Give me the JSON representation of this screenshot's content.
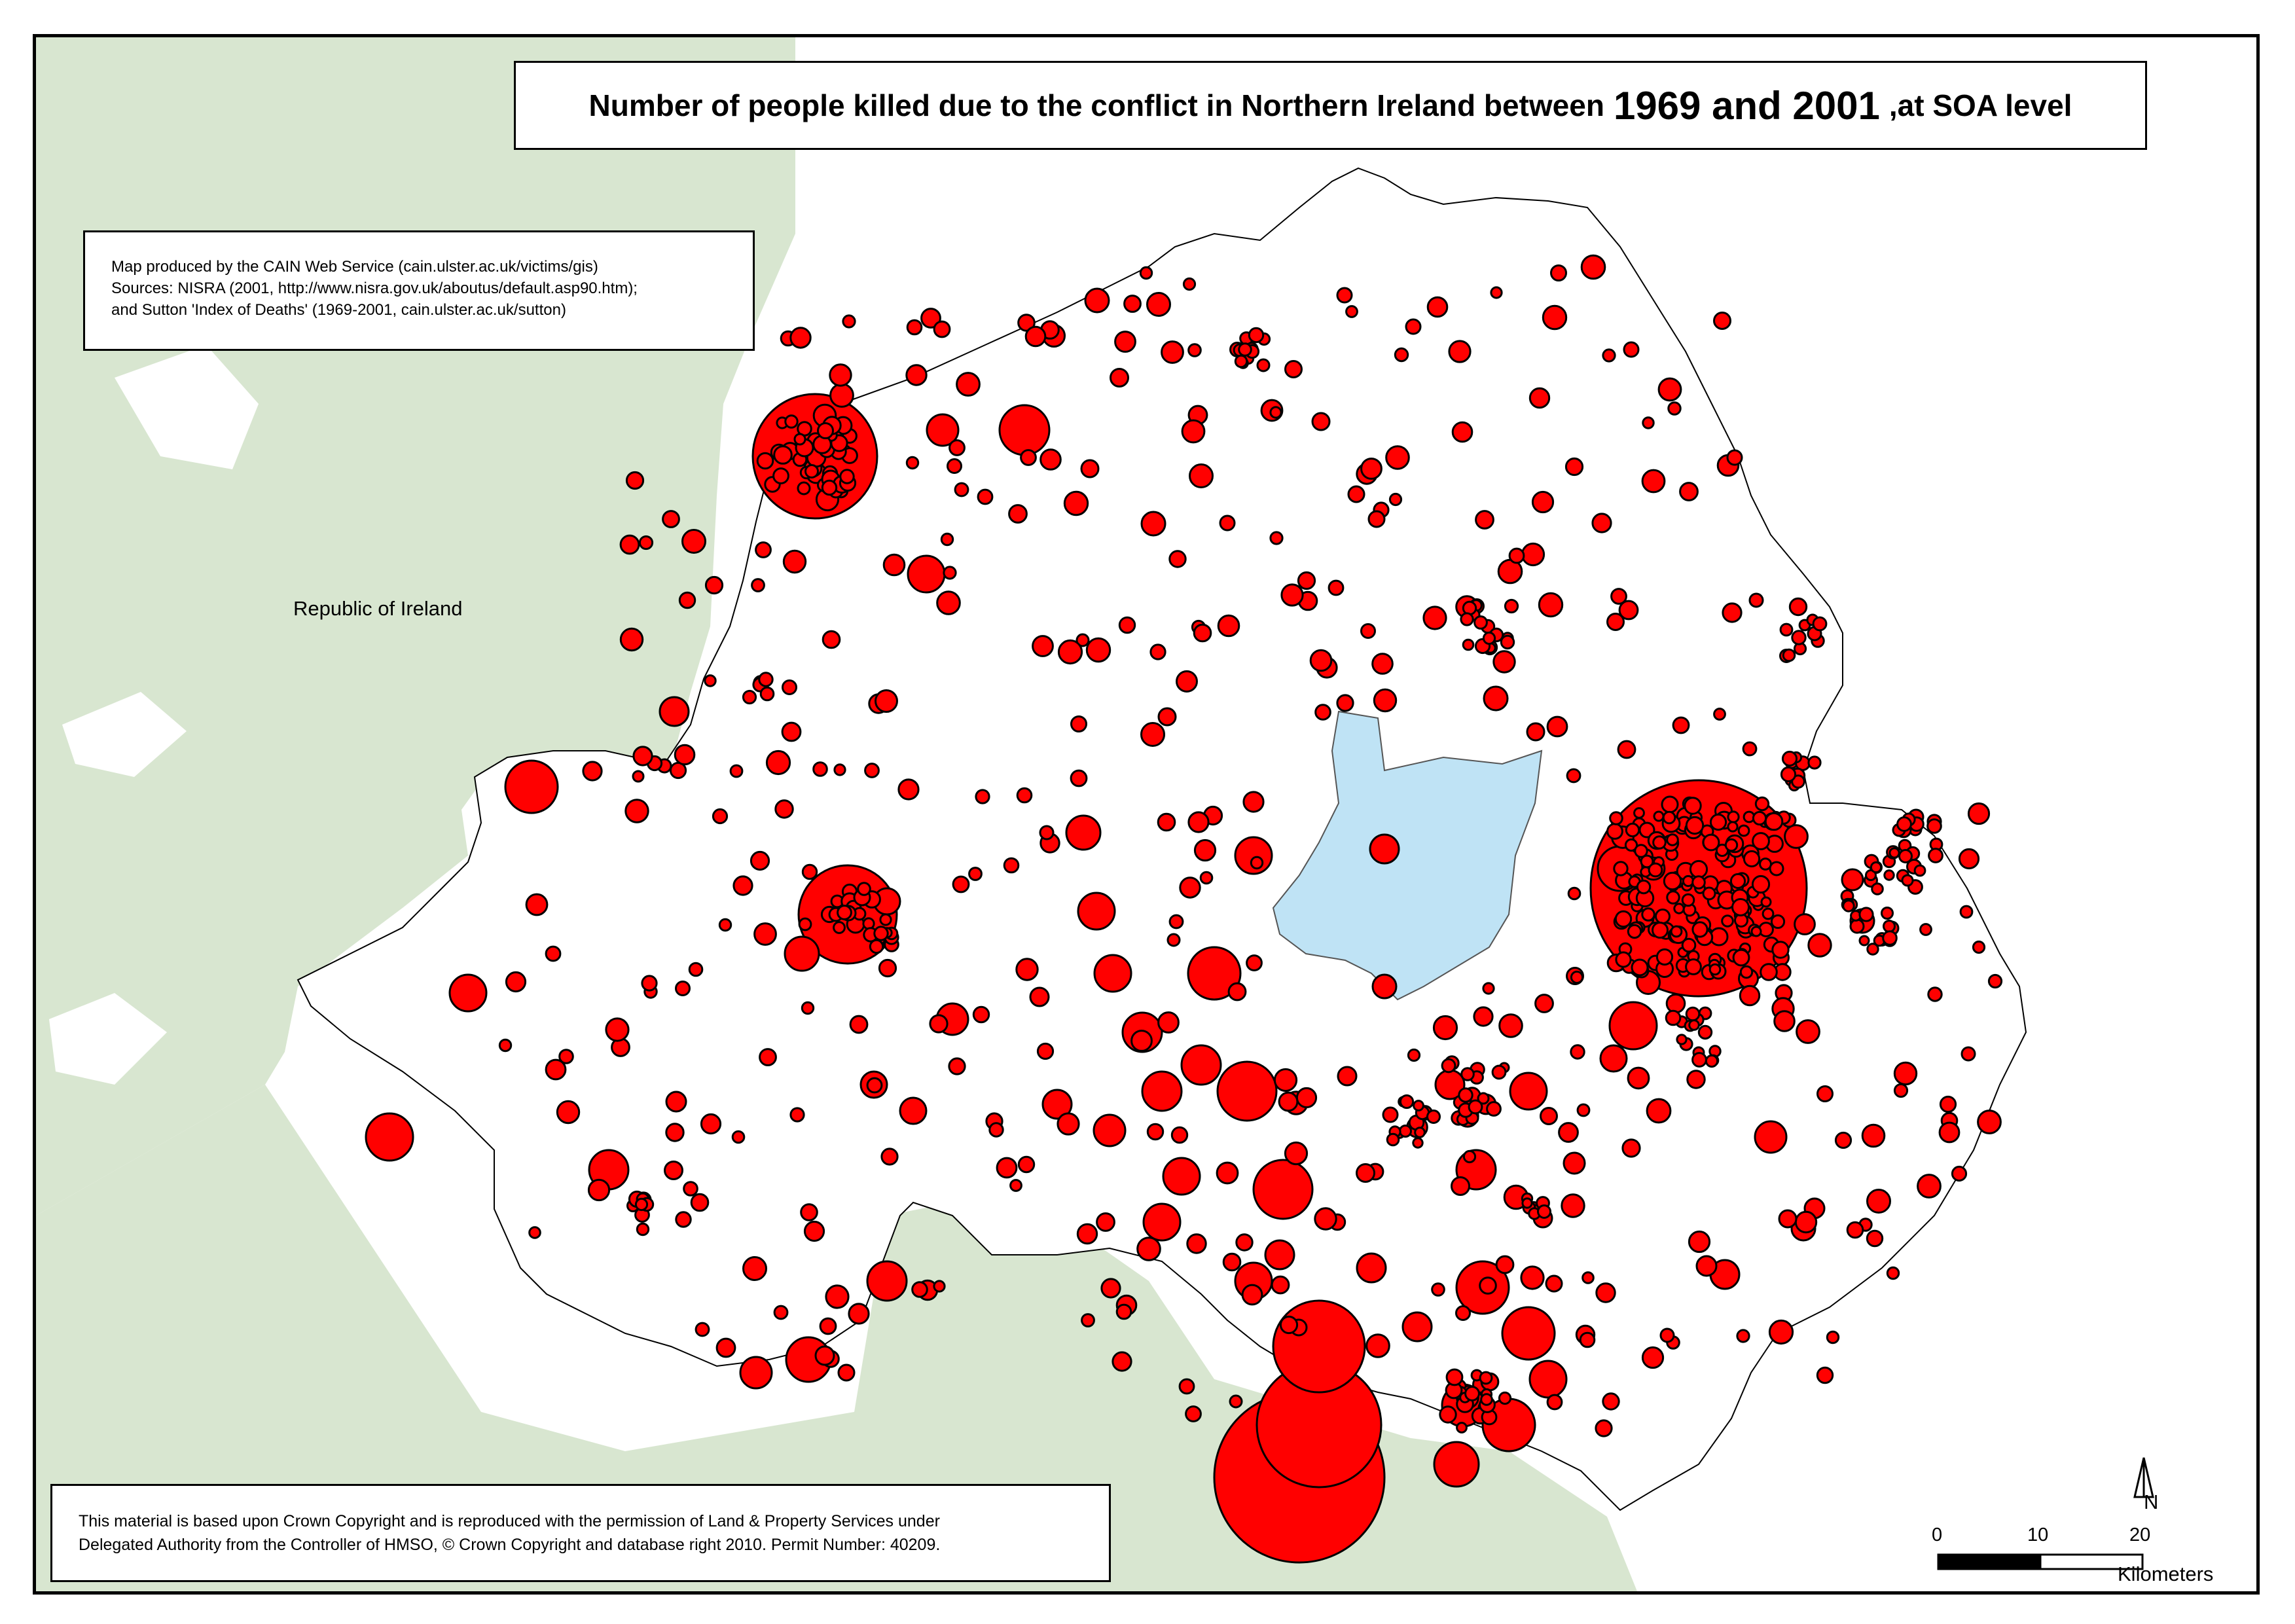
{
  "title": {
    "part1": "Number of people killed due to the conflict in Northern Ireland between",
    "part2": "1969 and 2001",
    "part3": ",at SOA level"
  },
  "credits": {
    "line1": "Map produced by the CAIN Web Service (cain.ulster.ac.uk/victims/gis)",
    "line2": "Sources: NISRA (2001, http://www.nisra.gov.uk/aboutus/default.asp90.htm);",
    "line3": "and Sutton 'Index of Deaths' (1969-2001, cain.ulster.ac.uk/sutton)"
  },
  "copyright": {
    "line1": "This material is based upon Crown Copyright and is reproduced with the permission of Land & Property Services under",
    "line2": "Delegated Authority from the Controller of HMSO, © Crown Copyright and database right 2010. Permit Number: 40209."
  },
  "labels": {
    "country": "Republic of Ireland"
  },
  "north_arrow": {
    "letter": "N"
  },
  "scale_bar": {
    "ticks": [
      "0",
      "10",
      "20"
    ],
    "unit": "Kilometers"
  },
  "colors": {
    "ni_land": "#ffffff",
    "roi_land": "#d8e6d0",
    "lough": "#bfe3f5",
    "symbol_fill": "#ff0000",
    "symbol_stroke": "#000000"
  }
}
